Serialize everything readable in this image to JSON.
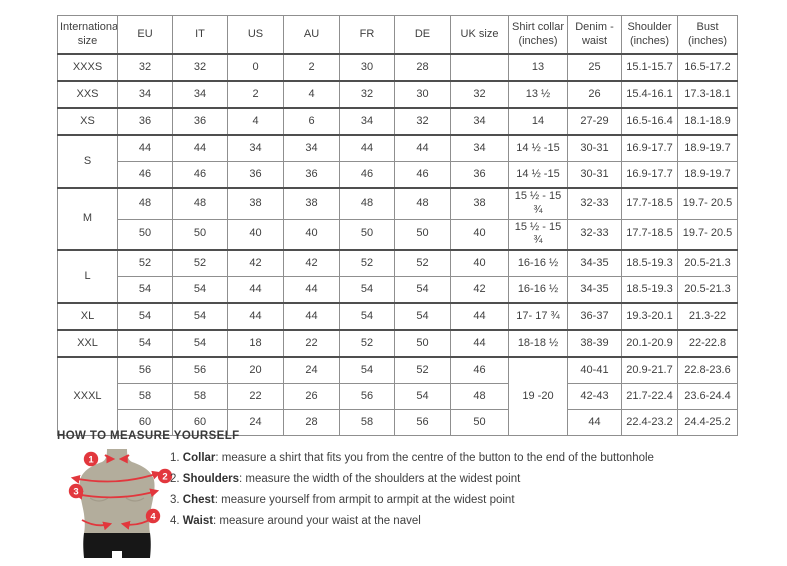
{
  "table": {
    "columns": [
      "International size",
      "EU",
      "IT",
      "US",
      "AU",
      "FR",
      "DE",
      "UK size",
      "Shirt collar (inches)",
      "Denim - waist",
      "Shoulder (inches)",
      "Bust (inches)"
    ],
    "groups": [
      {
        "size": "XXXS",
        "rows": [
          [
            "32",
            "32",
            "0",
            "2",
            "30",
            "28",
            "",
            "13",
            "25",
            "15.1-15.7",
            "16.5-17.2"
          ]
        ]
      },
      {
        "size": "XXS",
        "rows": [
          [
            "34",
            "34",
            "2",
            "4",
            "32",
            "30",
            "32",
            "13 ½",
            "26",
            "15.4-16.1",
            "17.3-18.1"
          ]
        ]
      },
      {
        "size": "XS",
        "rows": [
          [
            "36",
            "36",
            "4",
            "6",
            "34",
            "32",
            "34",
            "14",
            "27-29",
            "16.5-16.4",
            "18.1-18.9"
          ]
        ]
      },
      {
        "size": "S",
        "rows": [
          [
            "44",
            "44",
            "34",
            "34",
            "44",
            "44",
            "34",
            "14 ½ -15",
            "30-31",
            "16.9-17.7",
            "18.9-19.7"
          ],
          [
            "46",
            "46",
            "36",
            "36",
            "46",
            "46",
            "36",
            "14 ½ -15",
            "30-31",
            "16.9-17.7",
            "18.9-19.7"
          ]
        ]
      },
      {
        "size": "M",
        "rows": [
          [
            "48",
            "48",
            "38",
            "38",
            "48",
            "48",
            "38",
            "15 ½ - 15 ¾",
            "32-33",
            "17.7-18.5",
            "19.7- 20.5"
          ],
          [
            "50",
            "50",
            "40",
            "40",
            "50",
            "50",
            "40",
            "15 ½ - 15 ¾",
            "32-33",
            "17.7-18.5",
            "19.7- 20.5"
          ]
        ]
      },
      {
        "size": "L",
        "rows": [
          [
            "52",
            "52",
            "42",
            "42",
            "52",
            "52",
            "40",
            "16-16 ½",
            "34-35",
            "18.5-19.3",
            "20.5-21.3"
          ],
          [
            "54",
            "54",
            "44",
            "44",
            "54",
            "54",
            "42",
            "16-16 ½",
            "34-35",
            "18.5-19.3",
            "20.5-21.3"
          ]
        ]
      },
      {
        "size": "XL",
        "rows": [
          [
            "54",
            "54",
            "44",
            "44",
            "54",
            "54",
            "44",
            "17- 17 ¾",
            "36-37",
            "19.3-20.1",
            "21.3-22"
          ]
        ]
      },
      {
        "size": "XXL",
        "rows": [
          [
            "54",
            "54",
            "18",
            "22",
            "52",
            "50",
            "44",
            "18-18 ½",
            "38-39",
            "20.1-20.9",
            "22-22.8"
          ]
        ]
      },
      {
        "size": "XXXL",
        "collar_merged": "19 -20",
        "rows": [
          [
            "56",
            "56",
            "20",
            "24",
            "54",
            "52",
            "46",
            "40-41",
            "20.9-21.7",
            "22.8-23.6"
          ],
          [
            "58",
            "58",
            "22",
            "26",
            "56",
            "54",
            "48",
            "42-43",
            "21.7-22.4",
            "23.6-24.4"
          ],
          [
            "60",
            "60",
            "24",
            "28",
            "58",
            "56",
            "50",
            "44",
            "22.4-23.2",
            "24.4-25.2"
          ]
        ]
      }
    ]
  },
  "measure": {
    "heading": "HOW TO MEASURE YOURSELF",
    "badges": [
      "1",
      "2",
      "3",
      "4"
    ],
    "instructions": [
      {
        "num": "1.",
        "label": "Collar",
        "text": ": measure a shirt that fits you from the centre of the button to the end of the buttonhole"
      },
      {
        "num": "2.",
        "label": "Shoulders",
        "text": ": measure the width of the shoulders at the widest point"
      },
      {
        "num": "3.",
        "label": "Chest",
        "text": ": measure yourself from armpit to armpit at the widest point"
      },
      {
        "num": "4.",
        "label": "Waist",
        "text": ": measure around your waist at the navel"
      }
    ]
  },
  "colors": {
    "accent_red": "#e2373d",
    "torso": "#b3ad9c",
    "shorts": "#171717",
    "grid_dark": "#4f4f4f",
    "grid_light": "#8f8f8f"
  }
}
